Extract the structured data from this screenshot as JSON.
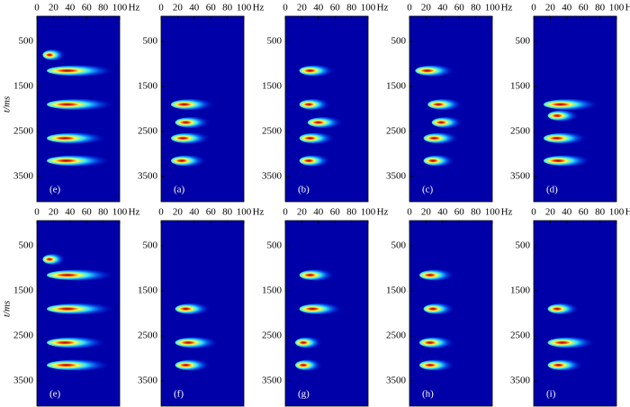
{
  "chart_data": [
    {
      "type": "spectrogram",
      "label": "(e)",
      "ylabel": "t/ms",
      "x_unit": "Hz",
      "xlim": [
        0,
        100
      ],
      "xticks": [
        0,
        20,
        40,
        60,
        80,
        100
      ],
      "ylim": [
        0,
        4000
      ],
      "yticks": [
        500,
        1500,
        2500,
        3500
      ],
      "peaks": [
        {
          "t": 800,
          "f": 20,
          "f_end": 35
        },
        {
          "t": 1150,
          "f": 25,
          "f_end": 95
        },
        {
          "t": 1900,
          "f": 25,
          "f_end": 95
        },
        {
          "t": 2650,
          "f": 25,
          "f_end": 85
        },
        {
          "t": 3150,
          "f": 25,
          "f_end": 90
        }
      ]
    },
    {
      "type": "spectrogram",
      "label": "(a)",
      "x_unit": "Hz",
      "xlim": [
        0,
        100
      ],
      "xticks": [
        0,
        20,
        40,
        60,
        80,
        100
      ],
      "ylim": [
        0,
        4000
      ],
      "yticks": [
        500,
        1500,
        2500,
        3500
      ],
      "peaks": [
        {
          "t": 1900,
          "f": 25,
          "f_end": 65
        },
        {
          "t": 2300,
          "f": 30,
          "f_end": 60
        },
        {
          "t": 2650,
          "f": 25,
          "f_end": 60
        },
        {
          "t": 3150,
          "f": 25,
          "f_end": 55
        }
      ]
    },
    {
      "type": "spectrogram",
      "label": "(b)",
      "x_unit": "Hz",
      "xlim": [
        0,
        100
      ],
      "xticks": [
        0,
        20,
        40,
        60,
        80,
        100
      ],
      "ylim": [
        0,
        4000
      ],
      "yticks": [
        500,
        1500,
        2500,
        3500
      ],
      "peaks": [
        {
          "t": 1150,
          "f": 30,
          "f_end": 60
        },
        {
          "t": 1900,
          "f": 30,
          "f_end": 55
        },
        {
          "t": 2300,
          "f": 40,
          "f_end": 70
        },
        {
          "t": 2650,
          "f": 30,
          "f_end": 60
        },
        {
          "t": 3150,
          "f": 30,
          "f_end": 55
        }
      ]
    },
    {
      "type": "spectrogram",
      "label": "(c)",
      "x_unit": "Hz",
      "xlim": [
        0,
        100
      ],
      "xticks": [
        0,
        20,
        40,
        60,
        80,
        100
      ],
      "ylim": [
        0,
        4000
      ],
      "yticks": [
        500,
        1500,
        2500,
        3500
      ],
      "peaks": [
        {
          "t": 1150,
          "f": 20,
          "f_end": 55
        },
        {
          "t": 1900,
          "f": 35,
          "f_end": 65
        },
        {
          "t": 2300,
          "f": 40,
          "f_end": 65
        },
        {
          "t": 2650,
          "f": 30,
          "f_end": 60
        },
        {
          "t": 3150,
          "f": 30,
          "f_end": 55
        }
      ]
    },
    {
      "type": "spectrogram",
      "label": "(d)",
      "x_unit": "Hz",
      "xlim": [
        0,
        100
      ],
      "xticks": [
        0,
        20,
        40,
        60,
        80,
        100
      ],
      "ylim": [
        0,
        4000
      ],
      "yticks": [
        500,
        1500,
        2500,
        3500
      ],
      "peaks": [
        {
          "t": 1900,
          "f": 25,
          "f_end": 80
        },
        {
          "t": 2150,
          "f": 30,
          "f_end": 55
        },
        {
          "t": 2650,
          "f": 25,
          "f_end": 65
        },
        {
          "t": 3150,
          "f": 25,
          "f_end": 70
        }
      ]
    },
    {
      "type": "spectrogram",
      "label": "(e)",
      "ylabel": "t/ms",
      "x_unit": "Hz",
      "xlim": [
        0,
        100
      ],
      "xticks": [
        0,
        20,
        40,
        60,
        80,
        100
      ],
      "ylim": [
        0,
        4000
      ],
      "yticks": [
        500,
        1500,
        2500,
        3500
      ],
      "peaks": [
        {
          "t": 800,
          "f": 20,
          "f_end": 35
        },
        {
          "t": 1150,
          "f": 25,
          "f_end": 95
        },
        {
          "t": 1900,
          "f": 25,
          "f_end": 95
        },
        {
          "t": 2650,
          "f": 25,
          "f_end": 85
        },
        {
          "t": 3150,
          "f": 25,
          "f_end": 90
        }
      ]
    },
    {
      "type": "spectrogram",
      "label": "(f)",
      "x_unit": "Hz",
      "xlim": [
        0,
        100
      ],
      "xticks": [
        0,
        20,
        40,
        60,
        80,
        100
      ],
      "ylim": [
        0,
        4000
      ],
      "yticks": [
        500,
        1500,
        2500,
        3500
      ],
      "peaks": [
        {
          "t": 1900,
          "f": 30,
          "f_end": 60
        },
        {
          "t": 2650,
          "f": 30,
          "f_end": 70
        },
        {
          "t": 3150,
          "f": 30,
          "f_end": 60
        }
      ]
    },
    {
      "type": "spectrogram",
      "label": "(g)",
      "x_unit": "Hz",
      "xlim": [
        0,
        100
      ],
      "xticks": [
        0,
        20,
        40,
        60,
        80,
        100
      ],
      "ylim": [
        0,
        4000
      ],
      "yticks": [
        500,
        1500,
        2500,
        3500
      ],
      "peaks": [
        {
          "t": 1150,
          "f": 30,
          "f_end": 60
        },
        {
          "t": 1900,
          "f": 30,
          "f_end": 70
        },
        {
          "t": 2650,
          "f": 25,
          "f_end": 45
        },
        {
          "t": 3150,
          "f": 25,
          "f_end": 45
        }
      ]
    },
    {
      "type": "spectrogram",
      "label": "(h)",
      "x_unit": "Hz",
      "xlim": [
        0,
        100
      ],
      "xticks": [
        0,
        20,
        40,
        60,
        80,
        100
      ],
      "ylim": [
        0,
        4000
      ],
      "yticks": [
        500,
        1500,
        2500,
        3500
      ],
      "peaks": [
        {
          "t": 1150,
          "f": 25,
          "f_end": 55
        },
        {
          "t": 1900,
          "f": 30,
          "f_end": 55
        },
        {
          "t": 2650,
          "f": 25,
          "f_end": 55
        },
        {
          "t": 3150,
          "f": 25,
          "f_end": 55
        }
      ]
    },
    {
      "type": "spectrogram",
      "label": "(i)",
      "x_unit": "Hz",
      "xlim": [
        0,
        100
      ],
      "xticks": [
        0,
        20,
        40,
        60,
        80,
        100
      ],
      "ylim": [
        0,
        4000
      ],
      "yticks": [
        500,
        1500,
        2500,
        3500
      ],
      "peaks": [
        {
          "t": 1900,
          "f": 30,
          "f_end": 55
        },
        {
          "t": 2650,
          "f": 30,
          "f_end": 75
        },
        {
          "t": 3150,
          "f": 30,
          "f_end": 60
        }
      ]
    }
  ]
}
